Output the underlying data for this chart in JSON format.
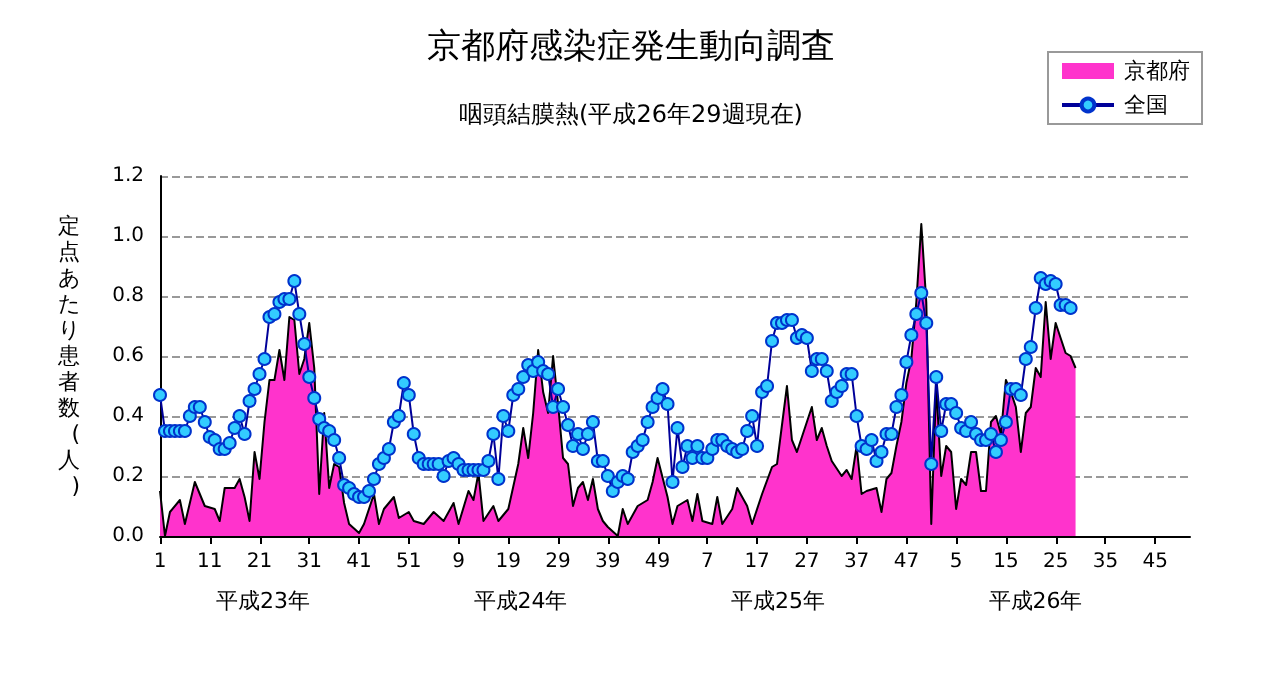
{
  "chart_data": {
    "type": "line",
    "title": "京都府感染症発生動向調査",
    "subtitle": "咽頭結膜熱(平成26年29週現在)",
    "ylabel": "定点あたり患者数(人)",
    "categories": [
      "1",
      null,
      null,
      null,
      null,
      null,
      null,
      null,
      null,
      null,
      "11",
      null,
      null,
      null,
      null,
      null,
      null,
      null,
      null,
      null,
      "21",
      null,
      null,
      null,
      null,
      null,
      null,
      null,
      null,
      null,
      "31",
      null,
      null,
      null,
      null,
      null,
      null,
      null,
      null,
      null,
      "41",
      null,
      null,
      null,
      null,
      null,
      null,
      null,
      null,
      null,
      "51",
      null,
      null,
      null,
      null,
      null,
      null,
      null,
      null,
      null,
      "9",
      null,
      null,
      null,
      null,
      null,
      null,
      null,
      null,
      null,
      "19",
      null,
      null,
      null,
      null,
      null,
      null,
      null,
      null,
      null,
      "29",
      null,
      null,
      null,
      null,
      null,
      null,
      null,
      null,
      null,
      "39",
      null,
      null,
      null,
      null,
      null,
      null,
      null,
      null,
      null,
      "49",
      null,
      null,
      null,
      null,
      null,
      null,
      null,
      null,
      null,
      "7",
      null,
      null,
      null,
      null,
      null,
      null,
      null,
      null,
      null,
      "17",
      null,
      null,
      null,
      null,
      null,
      null,
      null,
      null,
      null,
      "27",
      null,
      null,
      null,
      null,
      null,
      null,
      null,
      null,
      null,
      "37",
      null,
      null,
      null,
      null,
      null,
      null,
      null,
      null,
      null,
      "47",
      null,
      null,
      null,
      null,
      null,
      null,
      null,
      null,
      null,
      "5",
      null,
      null,
      null,
      null,
      null,
      null,
      null,
      null,
      null,
      "15",
      null,
      null,
      null,
      null,
      null,
      null,
      null,
      null,
      null,
      "25",
      null,
      null,
      null,
      null,
      null,
      null,
      null,
      null,
      null,
      "35",
      null,
      null,
      null,
      null,
      null,
      null,
      null,
      null,
      null,
      "45",
      null,
      null,
      null,
      null,
      null,
      null,
      null
    ],
    "annotations": [
      "平成23年",
      "平成24年",
      "平成25年",
      "平成26年"
    ],
    "ylim": [
      0,
      1.2
    ],
    "yticks": [
      {
        "value": 0,
        "label": "0.0"
      },
      {
        "value": 0.2,
        "label": "0.2"
      },
      {
        "value": 0.4,
        "label": "0.4"
      },
      {
        "value": 0.6,
        "label": "0.6"
      },
      {
        "value": 0.8,
        "label": "0.8"
      },
      {
        "value": 1,
        "label": "1.0"
      },
      {
        "value": 1.2,
        "label": "1.2"
      }
    ],
    "grid": "y",
    "legend": "top right",
    "series": [
      {
        "name": "京都府",
        "type": "area",
        "color": "#ff33cc",
        "values": [
          0.15,
          0,
          0.08,
          null,
          0.12,
          0.04,
          null,
          0.18,
          null,
          0.1,
          null,
          0.09,
          0.05,
          0.16,
          null,
          0.16,
          0.19,
          0.13,
          0.05,
          0.28,
          0.19,
          0.38,
          0.52,
          0.52,
          0.62,
          0.52,
          0.73,
          0.72,
          0.54,
          0.59,
          0.71,
          0.56,
          0.14,
          0.41,
          0.16,
          0.24,
          0.23,
          0.11,
          0.04,
          null,
          0.01,
          0.04,
          null,
          0.14,
          0.04,
          0.09,
          null,
          0.13,
          0.06,
          null,
          0.08,
          0.05,
          null,
          0.04,
          null,
          0.08,
          null,
          0.05,
          null,
          0.11,
          0.04,
          null,
          0.15,
          0.12,
          0.21,
          0.05,
          null,
          0.1,
          0.05,
          null,
          0.09,
          null,
          0.24,
          0.36,
          0.26,
          0.41,
          0.62,
          0.48,
          0.41,
          0.6,
          0.44,
          0.26,
          0.24,
          0.1,
          0.16,
          0.18,
          0.12,
          0.19,
          0.09,
          0.05,
          0.03,
          null,
          0,
          0.09,
          0.04,
          null,
          0.1,
          null,
          0.12,
          0.18,
          0.26,
          null,
          0.13,
          0.04,
          0.1,
          null,
          0.12,
          0.05,
          0.14,
          0.05,
          null,
          0.04,
          0.13,
          0.04,
          null,
          0.09,
          0.16,
          null,
          0.1,
          0.04,
          null,
          0.14,
          null,
          0.23,
          0.24,
          null,
          0.5,
          0.32,
          0.28,
          0.33,
          null,
          0.43,
          0.32,
          0.36,
          0.3,
          0.25,
          null,
          0.2,
          0.22,
          0.19,
          0.3,
          0.14,
          0.15,
          null,
          0.16,
          0.08,
          0.19,
          0.21,
          0.3,
          0.38,
          0.51,
          0.59,
          0.78,
          1.04,
          0.78,
          0.04,
          0.5,
          0.2,
          0.3,
          0.28,
          0.09,
          0.19,
          0.17,
          0.28,
          0.28,
          0.15,
          0.15,
          0.38,
          0.4,
          0.34,
          0.52,
          0.48,
          0.43,
          0.28,
          0.41,
          0.43,
          0.56,
          0.53,
          0.78,
          0.59,
          0.71,
          0.66,
          0.61,
          0.6,
          0.56,
          null,
          null,
          null,
          null,
          null,
          null,
          null,
          null,
          null,
          null,
          null,
          null,
          null,
          null,
          null,
          null,
          null,
          null,
          null,
          null,
          null,
          null,
          null
        ]
      },
      {
        "name": "全国",
        "color": "#33ccff",
        "marker": "circle",
        "values": [
          0.47,
          0.35,
          0.35,
          0.35,
          0.35,
          0.35,
          0.4,
          0.43,
          0.43,
          0.38,
          0.33,
          0.32,
          0.29,
          0.29,
          0.31,
          0.36,
          0.4,
          0.34,
          0.45,
          0.49,
          0.54,
          0.59,
          0.73,
          0.74,
          0.78,
          0.79,
          0.79,
          0.85,
          0.74,
          0.64,
          0.53,
          0.46,
          0.39,
          0.36,
          0.35,
          0.32,
          0.26,
          0.17,
          0.16,
          0.14,
          0.13,
          0.13,
          0.15,
          0.19,
          0.24,
          0.26,
          0.29,
          0.38,
          0.4,
          0.51,
          0.47,
          0.34,
          0.26,
          0.24,
          0.24,
          0.24,
          0.24,
          0.2,
          0.25,
          0.26,
          0.24,
          0.22,
          0.22,
          0.22,
          0.22,
          0.22,
          0.25,
          0.34,
          0.19,
          0.4,
          0.35,
          0.47,
          0.49,
          0.53,
          0.57,
          0.55,
          0.58,
          0.55,
          0.54,
          0.43,
          0.49,
          0.43,
          0.37,
          0.3,
          0.34,
          0.29,
          0.34,
          0.38,
          0.25,
          0.25,
          0.2,
          0.15,
          0.18,
          0.2,
          0.19,
          0.28,
          0.3,
          0.32,
          0.38,
          0.43,
          0.46,
          0.49,
          0.44,
          0.18,
          0.36,
          0.23,
          0.3,
          0.26,
          0.3,
          0.26,
          0.26,
          0.29,
          0.32,
          0.32,
          0.3,
          0.29,
          0.28,
          0.29,
          0.35,
          0.4,
          0.3,
          0.48,
          0.5,
          0.65,
          0.71,
          0.71,
          0.72,
          0.72,
          0.66,
          0.67,
          0.66,
          0.55,
          0.59,
          0.59,
          0.55,
          0.45,
          0.48,
          0.5,
          0.54,
          0.54,
          0.4,
          0.3,
          0.29,
          0.32,
          0.25,
          0.28,
          0.34,
          0.34,
          0.43,
          0.47,
          0.58,
          0.67,
          0.74,
          0.81,
          0.71,
          0.24,
          0.53,
          0.35,
          0.44,
          0.44,
          0.41,
          0.36,
          0.35,
          0.38,
          0.34,
          0.32,
          0.32,
          0.34,
          0.28,
          0.32,
          0.38,
          0.49,
          0.49,
          0.47,
          0.59,
          0.63,
          0.76,
          0.86,
          0.84,
          0.85,
          0.84,
          0.77,
          0.77,
          0.76,
          null,
          null,
          null,
          null,
          null,
          null,
          null,
          null,
          null,
          null,
          null,
          null,
          null,
          null,
          null,
          null,
          null,
          null,
          null,
          null,
          null,
          null,
          null,
          null
        ]
      }
    ]
  }
}
